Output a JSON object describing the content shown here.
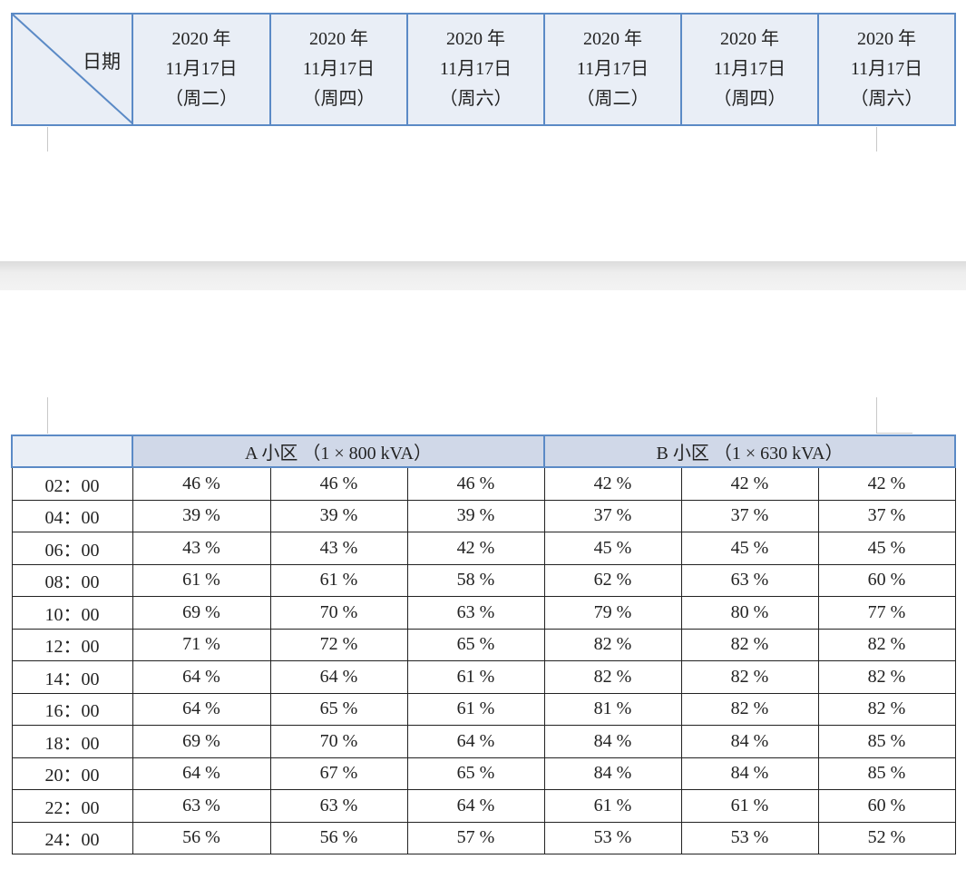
{
  "header_table": {
    "corner_label": "日期",
    "columns": [
      {
        "year": "2020 年",
        "date": "11月17日",
        "weekday": "（周二）"
      },
      {
        "year": "2020 年",
        "date": "11月17日",
        "weekday": "（周四）"
      },
      {
        "year": "2020 年",
        "date": "11月17日",
        "weekday": "（周六）"
      },
      {
        "year": "2020 年",
        "date": "11月17日",
        "weekday": "（周二）"
      },
      {
        "year": "2020 年",
        "date": "11月17日",
        "weekday": "（周四）"
      },
      {
        "year": "2020 年",
        "date": "11月17日",
        "weekday": "（周六）"
      }
    ]
  },
  "table": {
    "groups": [
      "A 小区 （1 × 800 kVA）",
      "B 小区 （1 × 630 kVA）"
    ],
    "rows": [
      [
        "02：00",
        "46 %",
        "46 %",
        "46 %",
        "42 %",
        "42 %",
        "42 %"
      ],
      [
        "04：00",
        "39 %",
        "39 %",
        "39 %",
        "37 %",
        "37 %",
        "37 %"
      ],
      [
        "06：00",
        "43 %",
        "43 %",
        "42 %",
        "45 %",
        "45 %",
        "45 %"
      ],
      [
        "08：00",
        "61 %",
        "61 %",
        "58 %",
        "62 %",
        "63 %",
        "60 %"
      ],
      [
        "10：00",
        "69 %",
        "70 %",
        "63 %",
        "79 %",
        "80 %",
        "77 %"
      ],
      [
        "12：00",
        "71 %",
        "72 %",
        "65 %",
        "82 %",
        "82 %",
        "82 %"
      ],
      [
        "14：00",
        "64 %",
        "64 %",
        "61 %",
        "82 %",
        "82 %",
        "82 %"
      ],
      [
        "16：00",
        "64 %",
        "65 %",
        "61 %",
        "81 %",
        "82 %",
        "82 %"
      ],
      [
        "18：00",
        "69 %",
        "70 %",
        "64 %",
        "84 %",
        "84 %",
        "85 %"
      ],
      [
        "20：00",
        "64 %",
        "67 %",
        "65 %",
        "84 %",
        "84 %",
        "85 %"
      ],
      [
        "22：00",
        "63 %",
        "63 %",
        "64 %",
        "61 %",
        "61 %",
        "60 %"
      ],
      [
        "24：00",
        "56 %",
        "56 %",
        "57 %",
        "53 %",
        "53 %",
        "52 %"
      ]
    ]
  }
}
